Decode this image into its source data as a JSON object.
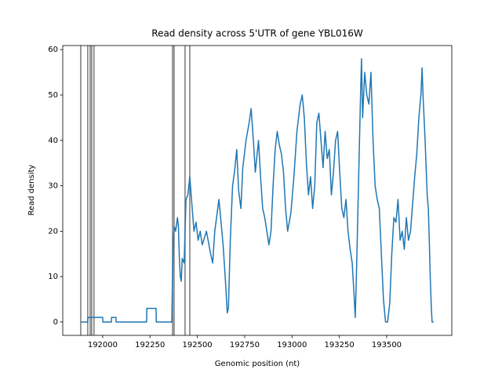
{
  "chart_data": {
    "type": "line",
    "title": "Read density across 5'UTR of gene YBL016W",
    "x_label": "Genomic position (nt)",
    "y_label": "Read density",
    "xlim": [
      191789,
      193844
    ],
    "ylim": [
      -2.95,
      60.9
    ],
    "xticks": [
      192000,
      192250,
      192500,
      192750,
      193000,
      193250,
      193500
    ],
    "yticks": [
      0,
      10,
      20,
      30,
      40,
      50,
      60
    ],
    "vlines": [
      191884,
      191921,
      191934,
      191942,
      191954,
      192369,
      192377,
      192435,
      192460
    ],
    "vline_color": "#404040",
    "series": [
      {
        "color": "#1f77b4",
        "x": [
          191884,
          191921,
          191922,
          192000,
          192001,
          192046,
          192047,
          192070,
          192071,
          192232,
          192233,
          192282,
          192283,
          192365,
          192368,
          192372,
          192378,
          192385,
          192395,
          192400,
          192405,
          192410,
          192415,
          192420,
          192430,
          192440,
          192450,
          192460,
          192471,
          192482,
          192493,
          192504,
          192515,
          192526,
          192548,
          192570,
          192581,
          192592,
          192614,
          192625,
          192636,
          192647,
          192658,
          192664,
          192674,
          192686,
          192696,
          192708,
          192718,
          192730,
          192740,
          192757,
          192774,
          192784,
          192796,
          192806,
          192823,
          192834,
          192845,
          192856,
          192867,
          192878,
          192889,
          192900,
          192911,
          192922,
          192933,
          192944,
          192955,
          192966,
          192977,
          192994,
          193010,
          193026,
          193043,
          193054,
          193065,
          193076,
          193087,
          193098,
          193109,
          193120,
          193131,
          193142,
          193153,
          193164,
          193175,
          193186,
          193197,
          193208,
          193219,
          193230,
          193241,
          193252,
          193263,
          193274,
          193285,
          193296,
          193307,
          193318,
          193329,
          193334,
          193340,
          193351,
          193362,
          193367,
          193373,
          193384,
          193395,
          193406,
          193417,
          193428,
          193439,
          193450,
          193461,
          193472,
          193483,
          193494,
          193505,
          193516,
          193527,
          193538,
          193549,
          193560,
          193571,
          193582,
          193593,
          193604,
          193615,
          193626,
          193637,
          193648,
          193659,
          193670,
          193681,
          193687,
          193692,
          193703,
          193714,
          193720,
          193725,
          193730,
          193736,
          193740,
          193748
        ],
        "values": [
          0,
          0,
          1,
          1,
          0,
          0,
          1,
          1,
          0,
          0,
          3,
          3,
          0,
          0,
          8,
          17,
          21,
          20,
          23,
          21,
          14,
          10,
          9,
          14,
          13,
          27,
          28,
          32,
          26,
          20,
          22,
          18,
          20,
          17,
          20,
          15,
          13,
          20,
          27,
          22,
          17,
          10,
          2,
          3,
          18,
          30,
          33,
          38,
          29,
          25,
          34,
          40,
          44,
          47,
          40,
          33,
          40,
          32,
          25,
          23,
          20,
          17,
          20,
          30,
          38,
          42,
          39,
          37,
          33,
          25,
          20,
          24,
          32,
          42,
          48,
          50,
          45,
          35,
          28,
          32,
          25,
          30,
          44,
          46,
          40,
          34,
          42,
          36,
          38,
          28,
          33,
          40,
          42,
          33,
          25,
          23,
          27,
          20,
          16,
          13,
          5,
          1,
          10,
          30,
          50,
          58,
          45,
          55,
          50,
          48,
          55,
          40,
          30,
          27,
          25,
          15,
          5,
          0,
          0,
          4,
          15,
          23,
          22,
          27,
          18,
          20,
          16,
          23,
          18,
          20,
          26,
          32,
          37,
          45,
          50,
          56,
          50,
          40,
          28,
          25,
          18,
          10,
          3,
          0,
          0
        ]
      }
    ]
  }
}
